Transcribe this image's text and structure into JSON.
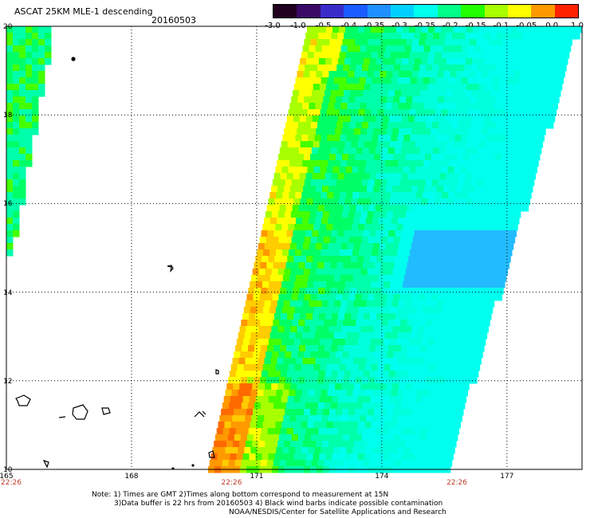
{
  "header": {
    "title": "ASCAT 25KM MLE-1 descending",
    "date": "20160503"
  },
  "colorbar": {
    "labels": [
      "-3.0",
      "-1.0",
      "-0.5",
      "-0.4",
      "-0.35",
      "-0.3",
      "-0.25",
      "-0.2",
      "-0.15",
      "-0.1",
      "-0.05",
      "0.0",
      "1.0"
    ],
    "colors": [
      "#200020",
      "#3a0a66",
      "#3a2cc8",
      "#1a5cff",
      "#1e90ff",
      "#00d0ff",
      "#00ffee",
      "#00ff88",
      "#22ff00",
      "#a8ff00",
      "#ffff00",
      "#ff9900",
      "#ff2200"
    ]
  },
  "map": {
    "latitudes": [
      "20",
      "18",
      "16",
      "14",
      "12",
      "10"
    ],
    "longitudes": [
      "165",
      "168",
      "171",
      "174",
      "177"
    ],
    "times": [
      "22:26",
      "22:26",
      "22:26"
    ],
    "lon_range": [
      165,
      178.8
    ],
    "lat_range": [
      10,
      20
    ]
  },
  "footer": {
    "line1": "Note: 1) Times are GMT 2)Times along bottom correspond to measurement at 15N",
    "line2": "3)Data buffer is 22 hrs from 20160503 4) Black wind barbs indicate possible contamination",
    "line3": "NOAA/NESDIS/Center for Satellite Applications and Research"
  }
}
